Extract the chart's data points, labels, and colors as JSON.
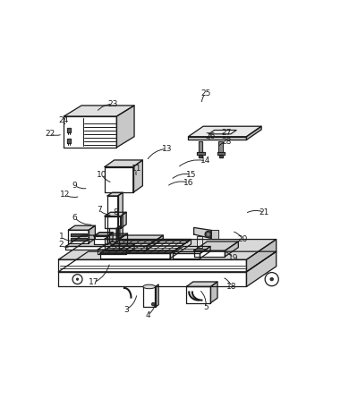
{
  "bg_color": "#ffffff",
  "line_color": "#1a1a1a",
  "lw": 0.9,
  "fig_w": 3.9,
  "fig_h": 4.55,
  "dpi": 100,
  "leaders": {
    "1": [
      0.065,
      0.385,
      0.115,
      0.37
    ],
    "2": [
      0.065,
      0.355,
      0.1,
      0.345
    ],
    "3": [
      0.305,
      0.115,
      0.345,
      0.175
    ],
    "4": [
      0.385,
      0.095,
      0.415,
      0.155
    ],
    "5": [
      0.6,
      0.125,
      0.575,
      0.19
    ],
    "6": [
      0.115,
      0.455,
      0.185,
      0.43
    ],
    "7": [
      0.205,
      0.485,
      0.255,
      0.465
    ],
    "8": [
      0.265,
      0.475,
      0.3,
      0.455
    ],
    "9": [
      0.115,
      0.575,
      0.165,
      0.565
    ],
    "10": [
      0.215,
      0.615,
      0.255,
      0.585
    ],
    "11": [
      0.345,
      0.635,
      0.345,
      0.605
    ],
    "12": [
      0.08,
      0.54,
      0.135,
      0.535
    ],
    "13": [
      0.455,
      0.71,
      0.38,
      0.665
    ],
    "14": [
      0.6,
      0.665,
      0.495,
      0.64
    ],
    "15": [
      0.545,
      0.615,
      0.47,
      0.595
    ],
    "16": [
      0.535,
      0.585,
      0.455,
      0.57
    ],
    "17": [
      0.185,
      0.215,
      0.245,
      0.29
    ],
    "18": [
      0.695,
      0.2,
      0.66,
      0.235
    ],
    "19": [
      0.7,
      0.305,
      0.665,
      0.33
    ],
    "20": [
      0.735,
      0.375,
      0.695,
      0.405
    ],
    "21": [
      0.815,
      0.475,
      0.745,
      0.47
    ],
    "22": [
      0.025,
      0.765,
      0.07,
      0.765
    ],
    "23": [
      0.255,
      0.875,
      0.195,
      0.845
    ],
    "24": [
      0.075,
      0.815,
      0.085,
      0.795
    ],
    "25": [
      0.6,
      0.915,
      0.585,
      0.875
    ],
    "26": [
      0.615,
      0.755,
      0.615,
      0.735
    ],
    "27": [
      0.675,
      0.77,
      0.655,
      0.76
    ],
    "28": [
      0.675,
      0.735,
      0.645,
      0.715
    ]
  }
}
